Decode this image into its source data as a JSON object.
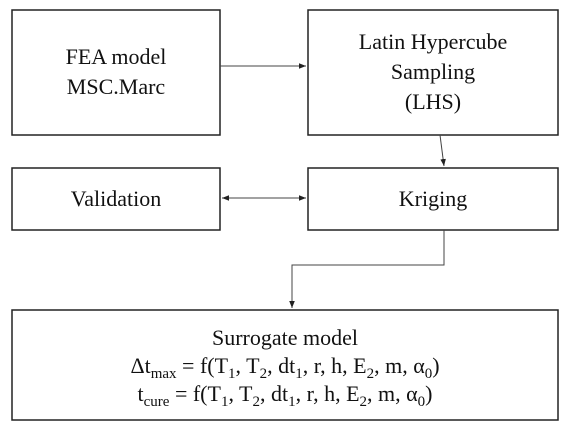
{
  "nodes": [
    {
      "lines": [
        "FEA model",
        "MSC.Marc"
      ]
    },
    {
      "lines": [
        "Latin Hypercube",
        "Sampling",
        "(LHS)"
      ]
    },
    {
      "lines": [
        "Validation"
      ]
    },
    {
      "lines": [
        "Kriging"
      ]
    },
    {
      "lines": [
        "Surrogate model"
      ],
      "formulas": [
        [
          "Δt",
          "max",
          " = f(T",
          "1",
          ", T",
          "2",
          ", dt",
          "1",
          ", r, h, E",
          "2",
          ", m, α",
          "0",
          ")"
        ],
        [
          "t",
          "cure",
          " = f(T",
          "1",
          ", T",
          "2",
          ", dt",
          "1",
          ", r, h, E",
          "2",
          ", m, α",
          "0",
          ")"
        ]
      ]
    }
  ]
}
